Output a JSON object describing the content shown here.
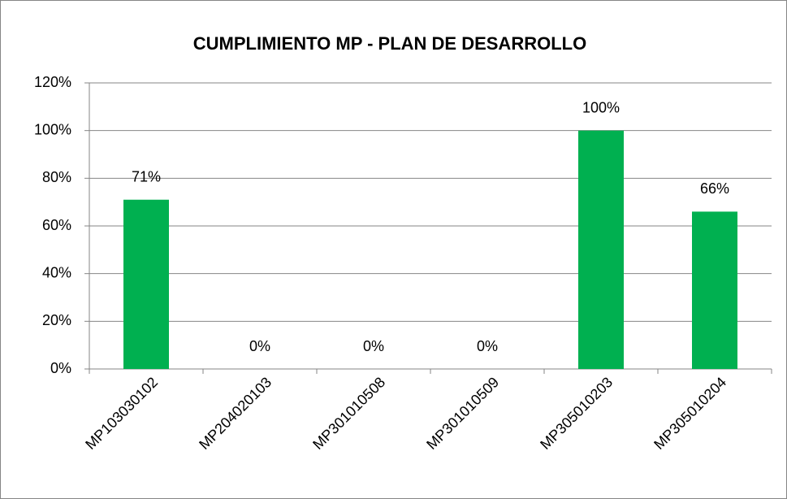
{
  "chart_data": {
    "type": "bar",
    "title": "CUMPLIMIENTO MP - PLAN DE DESARROLLO",
    "categories": [
      "MP103030102",
      "MP204020103",
      "MP301010508",
      "MP301010509",
      "MP305010203",
      "MP305010204"
    ],
    "values": [
      71,
      0,
      0,
      0,
      100,
      66
    ],
    "value_labels": [
      "71%",
      "0%",
      "0%",
      "0%",
      "100%",
      "66%"
    ],
    "color": "#00b050",
    "ylim": [
      0,
      120
    ],
    "yticks": [
      {
        "value": 0,
        "label": "0%"
      },
      {
        "value": 20,
        "label": "20%"
      },
      {
        "value": 40,
        "label": "40%"
      },
      {
        "value": 60,
        "label": "60%"
      },
      {
        "value": 80,
        "label": "80%"
      },
      {
        "value": 100,
        "label": "100%"
      },
      {
        "value": 120,
        "label": "120%"
      }
    ],
    "grid": true
  }
}
